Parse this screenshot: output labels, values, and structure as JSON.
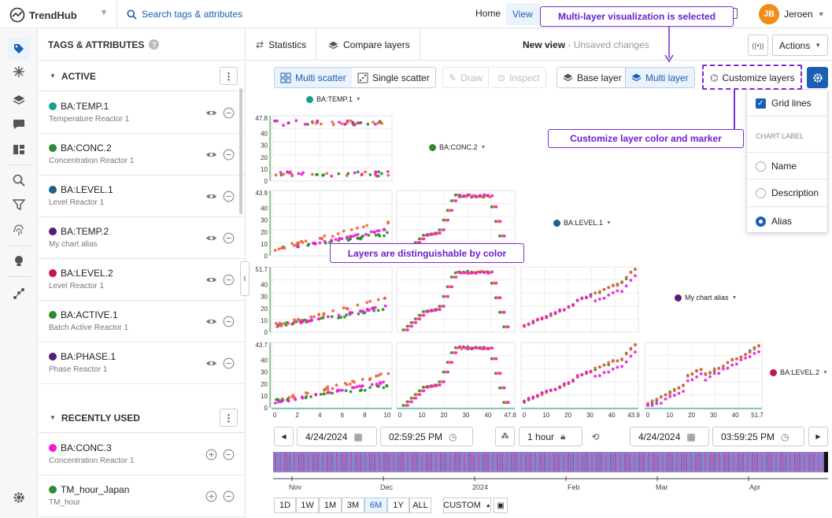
{
  "app": {
    "name": "TrendHub"
  },
  "search": {
    "placeholder": "Search tags & attributes"
  },
  "nav": {
    "home": "Home",
    "view": "View"
  },
  "user": {
    "initials": "JB",
    "name": "Jeroen"
  },
  "tags_panel": {
    "title": "TAGS & ATTRIBUTES",
    "active_label": "ACTIVE",
    "active": [
      {
        "name": "BA:TEMP.1",
        "desc": "Temperature Reactor 1",
        "color": "#1a9d8f"
      },
      {
        "name": "BA:CONC.2",
        "desc": "Concentration Reactor 1",
        "color": "#2f8a2f"
      },
      {
        "name": "BA:LEVEL.1",
        "desc": "Level Reactor 1",
        "color": "#1f5f8b"
      },
      {
        "name": "BA:TEMP.2",
        "desc": "My chart alias",
        "color": "#5a1a7a"
      },
      {
        "name": "BA:LEVEL.2",
        "desc": "Level Reactor 1",
        "color": "#c8144a"
      },
      {
        "name": "BA:ACTIVE.1",
        "desc": "Batch Active Reactor 1",
        "color": "#2f8a2f"
      },
      {
        "name": "BA:PHASE.1",
        "desc": "Phase Reactor 1",
        "color": "#5a1a7a"
      }
    ],
    "recent_label": "RECENTLY USED",
    "recent": [
      {
        "name": "BA:CONC.3",
        "desc": "Concentration Reactor 1",
        "color": "#ee1ad6"
      },
      {
        "name": "TM_hour_Japan",
        "desc": "TM_hour",
        "color": "#2f8a2f"
      }
    ]
  },
  "main": {
    "tabs": {
      "statistics": "Statistics",
      "compare": "Compare layers"
    },
    "view_title": "New view",
    "view_status": " - Unsaved changes",
    "actions": "Actions"
  },
  "toolbar": {
    "multi_scatter": "Multi scatter",
    "single_scatter": "Single scatter",
    "draw": "Draw",
    "inspect": "Inspect",
    "base_layer": "Base layer",
    "multi_layer": "Multi layer",
    "customize": "Customize layers"
  },
  "popup": {
    "grid_lines": "Grid lines",
    "chart_label_heading": "CHART LABEL",
    "options": [
      "Name",
      "Description",
      "Alias"
    ],
    "selected": "Alias"
  },
  "annotations": {
    "multi_layer": "Multi-layer visualization is selected",
    "customize": "Customize layer color and marker",
    "layers": "Layers are distinguishable by color"
  },
  "matrix_labels": {
    "temp1": "BA:TEMP.1",
    "conc2": "BA:CONC.2",
    "level1": "BA:LEVEL.1",
    "alias": "My chart alias",
    "level2": "BA:LEVEL.2"
  },
  "chart_data": {
    "type": "scatter",
    "variables": [
      "BA:TEMP.1",
      "BA:CONC.2",
      "BA:LEVEL.1",
      "My chart alias",
      "BA:LEVEL.2"
    ],
    "series": [
      {
        "color": "#2f8a2f"
      },
      {
        "color": "#f0603a"
      },
      {
        "color": "#ee1ad6"
      }
    ],
    "row_ticks": [
      [
        "47.8",
        "40",
        "30",
        "20",
        "10",
        "0"
      ],
      [
        "43.9",
        "40",
        "30",
        "20",
        "10",
        "0"
      ],
      [
        "51.7",
        "40",
        "30",
        "20",
        "10",
        "0"
      ],
      [
        "43.7",
        "40",
        "30",
        "20",
        "10",
        "0"
      ]
    ],
    "x_axes": [
      [
        "0",
        "2",
        "4",
        "6",
        "8",
        "10"
      ],
      [
        "0",
        "10",
        "20",
        "30",
        "40",
        "47.8"
      ],
      [
        "0",
        "10",
        "20",
        "30",
        "40",
        "43.9"
      ],
      [
        "0",
        "10",
        "20",
        "30",
        "40",
        "51.7"
      ]
    ],
    "grid": true,
    "legend": "none"
  },
  "timebar": {
    "start_date": "4/24/2024",
    "start_time": "02:59:25 PM",
    "duration": "1 hour",
    "end_date": "4/24/2024",
    "end_time": "03:59:25 PM",
    "months": [
      "Nov",
      "Dec",
      "2024",
      "Feb",
      "Mar",
      "Apr"
    ],
    "ranges": [
      "1D",
      "1W",
      "1M",
      "3M",
      "6M",
      "1Y",
      "ALL"
    ],
    "selected_range": "6M",
    "custom": "CUSTOM"
  }
}
